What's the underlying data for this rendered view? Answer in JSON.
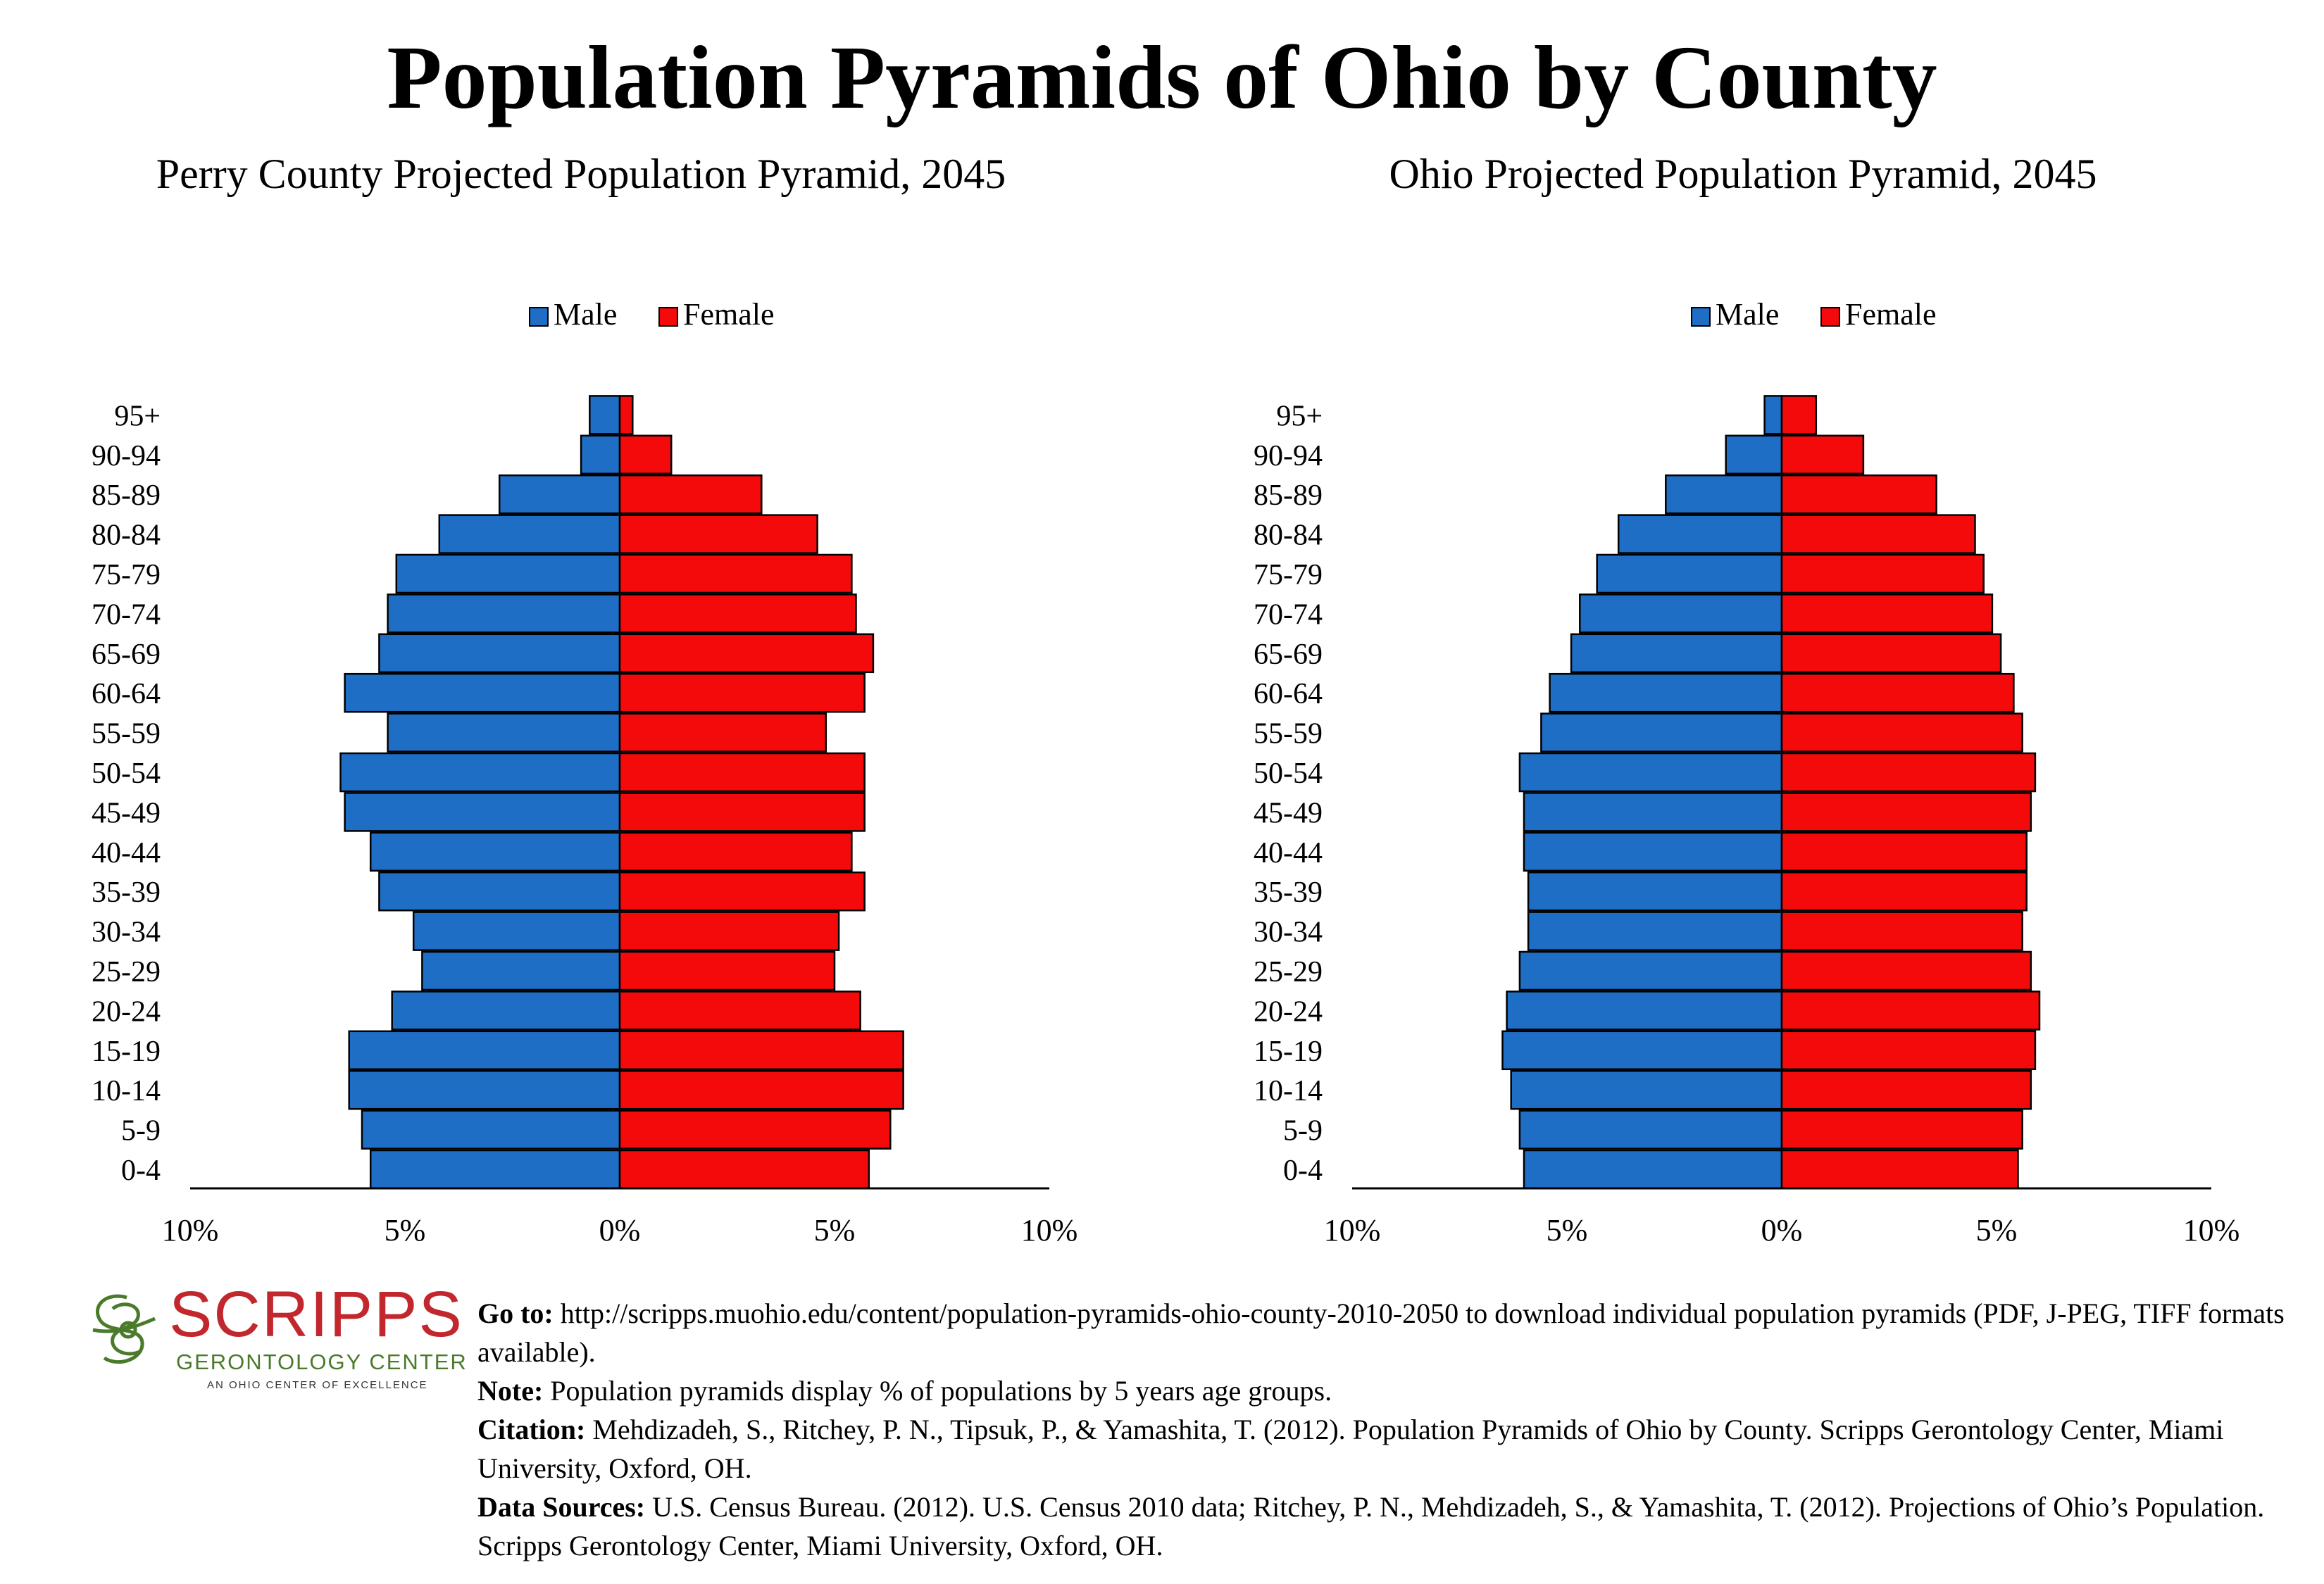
{
  "title": "Population Pyramids of Ohio by County",
  "legend": {
    "male": "Male",
    "female": "Female"
  },
  "colors": {
    "male": "#1f6ec6",
    "female": "#f40a0a",
    "outline": "#000000"
  },
  "chart_data": [
    {
      "type": "bar",
      "orientation": "horizontal-pyramid",
      "title": "Perry County Projected Population Pyramid, 2045",
      "categories": [
        "0-4",
        "5-9",
        "10-14",
        "15-19",
        "20-24",
        "25-29",
        "30-34",
        "35-39",
        "40-44",
        "45-49",
        "50-54",
        "55-59",
        "60-64",
        "65-69",
        "70-74",
        "75-79",
        "80-84",
        "85-89",
        "90-94",
        "95+"
      ],
      "series": [
        {
          "name": "Male",
          "values": [
            5.8,
            6.0,
            6.3,
            6.3,
            5.3,
            4.6,
            4.8,
            5.6,
            5.8,
            6.4,
            6.5,
            5.4,
            6.4,
            5.6,
            5.4,
            5.2,
            4.2,
            2.8,
            0.9,
            0.7
          ]
        },
        {
          "name": "Female",
          "values": [
            5.8,
            6.3,
            6.6,
            6.6,
            5.6,
            5.0,
            5.1,
            5.7,
            5.4,
            5.7,
            5.7,
            4.8,
            5.7,
            5.9,
            5.5,
            5.4,
            4.6,
            3.3,
            1.2,
            0.3
          ]
        }
      ],
      "xlim": [
        -10,
        10
      ],
      "xticks": [
        "10%",
        "5%",
        "0%",
        "5%",
        "10%"
      ],
      "legend_position": "top-center"
    },
    {
      "type": "bar",
      "orientation": "horizontal-pyramid",
      "title": "Ohio Projected Population Pyramid, 2045",
      "categories": [
        "0-4",
        "5-9",
        "10-14",
        "15-19",
        "20-24",
        "25-29",
        "30-34",
        "35-39",
        "40-44",
        "45-49",
        "50-54",
        "55-59",
        "60-64",
        "65-69",
        "70-74",
        "75-79",
        "80-84",
        "85-89",
        "90-94",
        "95+"
      ],
      "series": [
        {
          "name": "Male",
          "values": [
            6.0,
            6.1,
            6.3,
            6.5,
            6.4,
            6.1,
            5.9,
            5.9,
            6.0,
            6.0,
            6.1,
            5.6,
            5.4,
            4.9,
            4.7,
            4.3,
            3.8,
            2.7,
            1.3,
            0.4
          ]
        },
        {
          "name": "Female",
          "values": [
            5.5,
            5.6,
            5.8,
            5.9,
            6.0,
            5.8,
            5.6,
            5.7,
            5.7,
            5.8,
            5.9,
            5.6,
            5.4,
            5.1,
            4.9,
            4.7,
            4.5,
            3.6,
            1.9,
            0.8
          ]
        }
      ],
      "xlim": [
        -10,
        10
      ],
      "xticks": [
        "10%",
        "5%",
        "0%",
        "5%",
        "10%"
      ],
      "legend_position": "top-center"
    }
  ],
  "logo": {
    "name": "SCRIPPS",
    "subtitle": "GERONTOLOGY CENTER",
    "tagline": "AN OHIO CENTER OF EXCELLENCE"
  },
  "notes": {
    "goto_label": "Go to:",
    "goto_text": " http://scripps.muohio.edu/content/population-pyramids-ohio-county-2010-2050 to download individual population pyramids (PDF, J-PEG, TIFF formats available).",
    "note_label": "Note:",
    "note_text": " Population pyramids display % of populations by 5 years age groups.",
    "citation_label": "Citation:",
    "citation_text": " Mehdizadeh, S., Ritchey, P. N., Tipsuk, P., & Yamashita, T. (2012). Population Pyramids of Ohio by County. Scripps Gerontology Center, Miami University, Oxford, OH.",
    "sources_label": "Data Sources:",
    "sources_text": " U.S. Census Bureau. (2012). U.S. Census 2010 data; Ritchey, P. N., Mehdizadeh, S., & Yamashita, T. (2012). Projections of Ohio’s Population. Scripps Gerontology Center, Miami University, Oxford, OH."
  }
}
